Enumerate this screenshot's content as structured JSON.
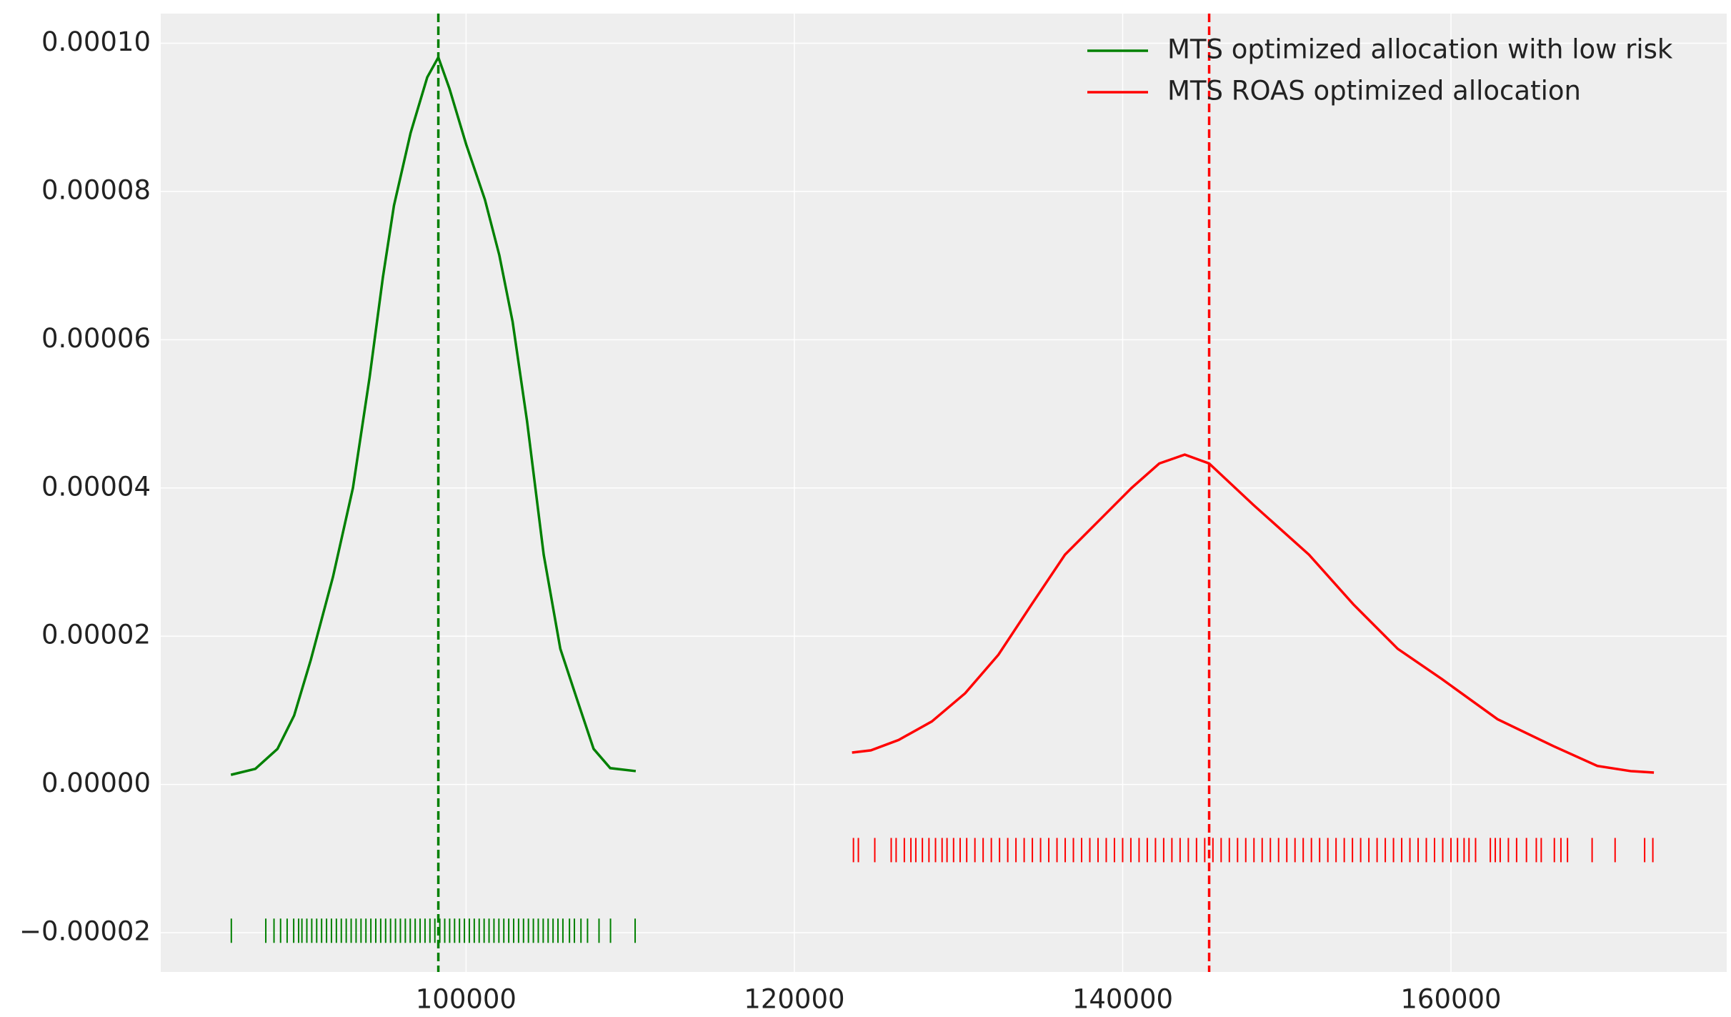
{
  "chart_data": {
    "type": "kde",
    "series": [
      {
        "name": "MTS optimized allocation with low risk",
        "color": "#008000",
        "x": [
          85676,
          87162,
          88514,
          89527,
          90541,
          91892,
          93108,
          94122,
          94932,
          95608,
          96622,
          97635,
          98311,
          98986,
          100000,
          101149,
          102027,
          102838,
          103716,
          104730,
          105743,
          106757,
          107770,
          108784,
          110338
        ],
        "values": [
          1.3e-06,
          2.1e-06,
          4.8e-06,
          9.3e-06,
          1.68e-05,
          2.8e-05,
          4e-05,
          5.49e-05,
          6.84e-05,
          7.81e-05,
          8.79e-05,
          9.54e-05,
          9.81e-05,
          9.39e-05,
          8.64e-05,
          7.89e-05,
          7.14e-05,
          6.24e-05,
          4.9e-05,
          3.1e-05,
          1.83e-05,
          1.15e-05,
          4.8e-06,
          2.2e-06,
          1.8e-06
        ],
        "mean": 98311,
        "rug": [
          85700,
          87800,
          88300,
          88700,
          89100,
          89500,
          89800,
          90000,
          90300,
          90600,
          90900,
          91200,
          91500,
          91800,
          92100,
          92400,
          92700,
          93000,
          93300,
          93600,
          93900,
          94200,
          94500,
          94800,
          95100,
          95400,
          95700,
          96000,
          96300,
          96600,
          96900,
          97200,
          97500,
          97800,
          98100,
          98400,
          98700,
          99000,
          99300,
          99600,
          99900,
          100200,
          100500,
          100800,
          101100,
          101400,
          101700,
          102000,
          102300,
          102600,
          102900,
          103200,
          103500,
          103800,
          104100,
          104400,
          104700,
          105000,
          105300,
          105600,
          105900,
          106300,
          106600,
          107000,
          107400,
          108100,
          108800,
          110300
        ]
      },
      {
        "name": "MTS ROAS optimized allocation",
        "color": "#ff0000",
        "x": [
          123514,
          124662,
          126351,
          128378,
          130405,
          132432,
          134459,
          136486,
          138514,
          140541,
          142230,
          143784,
          145270,
          147973,
          151351,
          154054,
          156757,
          159459,
          162838,
          166216,
          168919,
          170946,
          172365
        ],
        "values": [
          4.3e-06,
          4.6e-06,
          6e-06,
          8.5e-06,
          1.23e-05,
          1.75e-05,
          2.43e-05,
          3.1e-05,
          3.55e-05,
          4e-05,
          4.33e-05,
          4.45e-05,
          4.33e-05,
          3.77e-05,
          3.1e-05,
          2.43e-05,
          1.83e-05,
          1.42e-05,
          8.8e-06,
          5.2e-06,
          2.5e-06,
          1.8e-06,
          1.6e-06
        ],
        "mean": 145270,
        "rug": [
          123600,
          123900,
          124900,
          125900,
          126200,
          126700,
          127100,
          127400,
          127800,
          128200,
          128600,
          129000,
          129300,
          129700,
          130100,
          130500,
          131000,
          131500,
          132000,
          132500,
          133000,
          133500,
          134000,
          134500,
          135000,
          135500,
          136000,
          136500,
          137000,
          137500,
          138000,
          138500,
          139000,
          139500,
          140000,
          140500,
          141000,
          141500,
          142000,
          142500,
          143000,
          143500,
          144000,
          144500,
          145000,
          145500,
          146000,
          146500,
          147000,
          147500,
          148000,
          148500,
          149000,
          149500,
          150000,
          150500,
          151000,
          151500,
          152000,
          152500,
          153000,
          153500,
          154000,
          154500,
          155000,
          155500,
          156000,
          156500,
          157000,
          157500,
          158000,
          158500,
          159000,
          159500,
          160000,
          160400,
          160800,
          161100,
          161500,
          162400,
          162700,
          163000,
          163500,
          164000,
          164600,
          165200,
          165500,
          166300,
          166700,
          167100,
          168600,
          170000,
          171800,
          172300
        ]
      }
    ],
    "xlim": [
      81400,
      176800
    ],
    "xticks": [
      100000,
      120000,
      140000,
      160000
    ],
    "ylim": [
      -2.53e-05,
      0.000104
    ],
    "yticks": [
      {
        "value": -2e-05,
        "label": "−0.00002"
      },
      {
        "value": 0,
        "label": "0.00000"
      },
      {
        "value": 2e-05,
        "label": "0.00002"
      },
      {
        "value": 4e-05,
        "label": "0.00004"
      },
      {
        "value": 6e-05,
        "label": "0.00006"
      },
      {
        "value": 8e-05,
        "label": "0.00008"
      },
      {
        "value": 0.0001,
        "label": "0.00010"
      }
    ],
    "grid": true,
    "legend": "upper right"
  }
}
